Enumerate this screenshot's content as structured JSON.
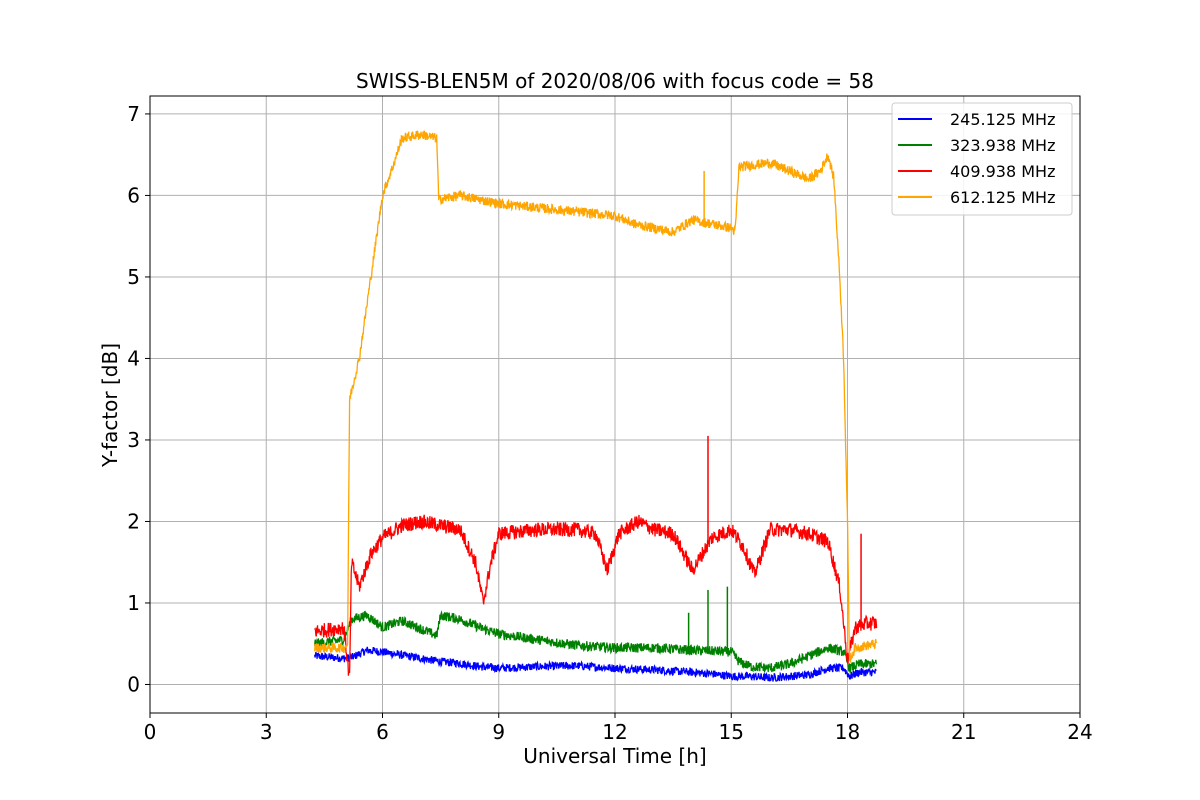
{
  "chart_data": {
    "type": "line",
    "title": "SWISS-BLEN5M of 2020/08/06 with focus code = 58",
    "xlabel": "Universal Time [h]",
    "ylabel": "Y-factor [dB]",
    "xlim": [
      0,
      24
    ],
    "ylim": [
      -0.35,
      7.22
    ],
    "xticks": [
      0,
      3,
      6,
      9,
      12,
      15,
      18,
      21,
      24
    ],
    "yticks": [
      0,
      1,
      2,
      3,
      4,
      5,
      6,
      7
    ],
    "xtick_labels": [
      "0",
      "3",
      "6",
      "9",
      "12",
      "15",
      "18",
      "21",
      "24"
    ],
    "ytick_labels": [
      "0",
      "1",
      "2",
      "3",
      "4",
      "5",
      "6",
      "7"
    ],
    "grid": true,
    "legend_position": "top-right",
    "series": [
      {
        "name": "245.125 MHz",
        "color": "#0000ff",
        "noise": 0.05,
        "x": [
          4.25,
          5.0,
          5.2,
          5.6,
          6.0,
          6.5,
          7.0,
          7.5,
          8.0,
          8.5,
          9.0,
          10.0,
          11.0,
          12.0,
          13.0,
          14.0,
          14.5,
          15.0,
          15.5,
          16.0,
          16.5,
          17.0,
          17.5,
          17.9,
          18.05,
          18.3,
          18.75
        ],
        "y": [
          0.35,
          0.32,
          0.33,
          0.42,
          0.4,
          0.36,
          0.32,
          0.28,
          0.26,
          0.22,
          0.2,
          0.22,
          0.23,
          0.2,
          0.18,
          0.15,
          0.13,
          0.1,
          0.1,
          0.08,
          0.1,
          0.12,
          0.2,
          0.2,
          0.1,
          0.15,
          0.15
        ]
      },
      {
        "name": "323.938 MHz",
        "color": "#008000",
        "noise": 0.06,
        "x": [
          4.25,
          5.0,
          5.2,
          5.6,
          6.0,
          6.5,
          7.0,
          7.4,
          7.5,
          8.0,
          8.5,
          9.0,
          10.0,
          11.0,
          12.0,
          13.0,
          14.0,
          15.0,
          15.2,
          15.5,
          16.0,
          16.5,
          17.0,
          17.5,
          17.9,
          18.05,
          18.3,
          18.75
        ],
        "y": [
          0.5,
          0.55,
          0.8,
          0.85,
          0.7,
          0.78,
          0.68,
          0.6,
          0.85,
          0.8,
          0.7,
          0.62,
          0.55,
          0.48,
          0.45,
          0.45,
          0.42,
          0.4,
          0.28,
          0.22,
          0.2,
          0.25,
          0.35,
          0.45,
          0.4,
          0.2,
          0.25,
          0.25
        ],
        "spikes": [
          [
            13.9,
            0.88
          ],
          [
            14.4,
            1.16
          ],
          [
            14.9,
            1.2
          ]
        ]
      },
      {
        "name": "409.938 MHz",
        "color": "#ff0000",
        "noise": 0.09,
        "x": [
          4.25,
          5.0,
          5.15,
          5.2,
          5.4,
          5.7,
          6.0,
          6.5,
          7.0,
          7.5,
          8.0,
          8.4,
          8.6,
          8.8,
          9.0,
          10.0,
          11.0,
          11.5,
          11.8,
          12.1,
          12.6,
          13.0,
          13.5,
          14.0,
          14.5,
          15.0,
          15.3,
          15.6,
          16.0,
          16.5,
          17.0,
          17.5,
          17.8,
          18.0,
          18.2,
          18.5,
          18.75
        ],
        "y": [
          0.65,
          0.7,
          0.05,
          1.5,
          1.2,
          1.6,
          1.8,
          1.95,
          2.0,
          1.95,
          1.9,
          1.5,
          1.0,
          1.5,
          1.85,
          1.9,
          1.9,
          1.85,
          1.4,
          1.85,
          2.0,
          1.9,
          1.85,
          1.4,
          1.8,
          1.9,
          1.7,
          1.35,
          1.9,
          1.9,
          1.85,
          1.75,
          1.2,
          0.3,
          0.7,
          0.75,
          0.75
        ],
        "spikes": [
          [
            14.4,
            3.05
          ],
          [
            18.35,
            1.85
          ]
        ]
      },
      {
        "name": "612.125 MHz",
        "color": "#ffa500",
        "noise": 0.06,
        "x": [
          4.25,
          5.0,
          5.1,
          5.15,
          5.2,
          5.4,
          5.7,
          6.0,
          6.3,
          6.5,
          7.0,
          7.4,
          7.45,
          8.0,
          9.0,
          10.0,
          11.0,
          12.0,
          12.5,
          13.0,
          13.5,
          14.0,
          14.5,
          15.0,
          15.1,
          15.2,
          16.0,
          16.5,
          17.0,
          17.3,
          17.5,
          17.65,
          17.8,
          17.9,
          18.0,
          18.05,
          18.2,
          18.75
        ],
        "y": [
          0.45,
          0.45,
          0.5,
          3.5,
          3.6,
          4.0,
          5.0,
          6.0,
          6.4,
          6.7,
          6.75,
          6.7,
          5.95,
          6.0,
          5.9,
          5.85,
          5.8,
          5.75,
          5.65,
          5.6,
          5.55,
          5.7,
          5.65,
          5.6,
          5.55,
          6.35,
          6.4,
          6.3,
          6.2,
          6.3,
          6.5,
          6.2,
          5.0,
          4.0,
          2.0,
          0.3,
          0.45,
          0.5
        ],
        "spikes": [
          [
            14.3,
            6.3
          ]
        ]
      }
    ]
  }
}
